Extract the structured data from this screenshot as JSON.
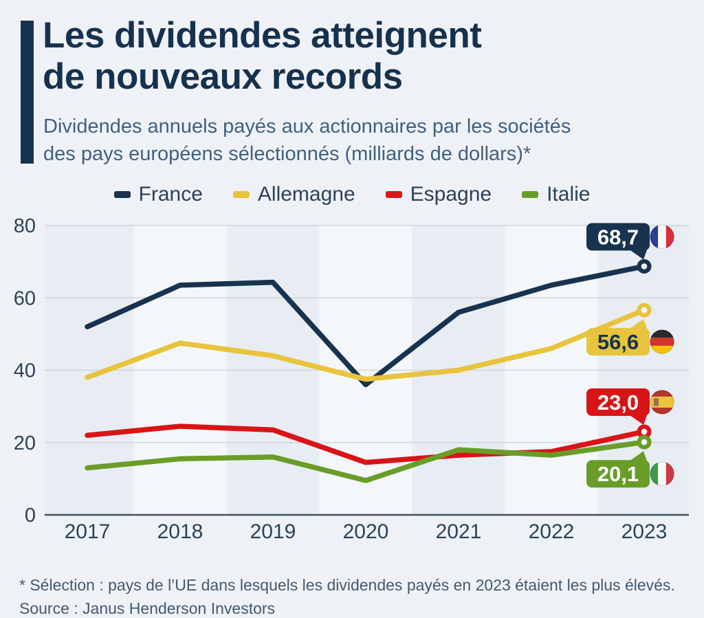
{
  "header": {
    "title_line1": "Les dividendes atteignent",
    "title_line2": "de nouveaux records",
    "subtitle_line1": "Dividendes annuels payés aux actionnaires par les sociétés",
    "subtitle_line2": "des pays européens sélectionnés (milliards de dollars)*"
  },
  "chart_data": {
    "type": "line",
    "title": "Les dividendes atteignent de nouveaux records",
    "unit": "milliards de dollars",
    "x": [
      2017,
      2018,
      2019,
      2020,
      2021,
      2022,
      2023
    ],
    "yticks": [
      0,
      20,
      40,
      60,
      80
    ],
    "ylim": [
      0,
      80
    ],
    "grid": true,
    "legend_position": "top",
    "series": [
      {
        "id": "france",
        "name": "France",
        "color": "#18334f",
        "values": [
          52,
          63.5,
          64.3,
          36,
          56,
          63.5,
          68.7
        ],
        "end_value": 68.7,
        "end_label": "68,7",
        "flag": "france",
        "label_side": "above",
        "label_text_color": "#ffffff"
      },
      {
        "id": "allemagne",
        "name": "Allemagne",
        "color": "#e8c33d",
        "values": [
          38,
          47.5,
          44,
          37.5,
          40,
          46,
          56.6
        ],
        "end_value": 56.6,
        "end_label": "56,6",
        "flag": "germany",
        "label_side": "below",
        "label_text_color": "#18334f"
      },
      {
        "id": "espagne",
        "name": "Espagne",
        "color": "#d91418",
        "values": [
          22,
          24.5,
          23.5,
          14.5,
          16.5,
          17.5,
          23
        ],
        "end_value": 23.0,
        "end_label": "23,0",
        "flag": "spain",
        "label_side": "above",
        "label_text_color": "#ffffff"
      },
      {
        "id": "italie",
        "name": "Italie",
        "color": "#699d27",
        "values": [
          13,
          15.5,
          16,
          9.5,
          18,
          16.5,
          20.1
        ],
        "end_value": 20.1,
        "end_label": "20,1",
        "flag": "italy",
        "label_side": "below",
        "label_text_color": "#ffffff"
      }
    ]
  },
  "footer": {
    "note": "* Sélection : pays de l’UE dans lesquels les dividendes payés en 2023 étaient les plus élevés.",
    "source": "Source : Janus Henderson Investors"
  }
}
